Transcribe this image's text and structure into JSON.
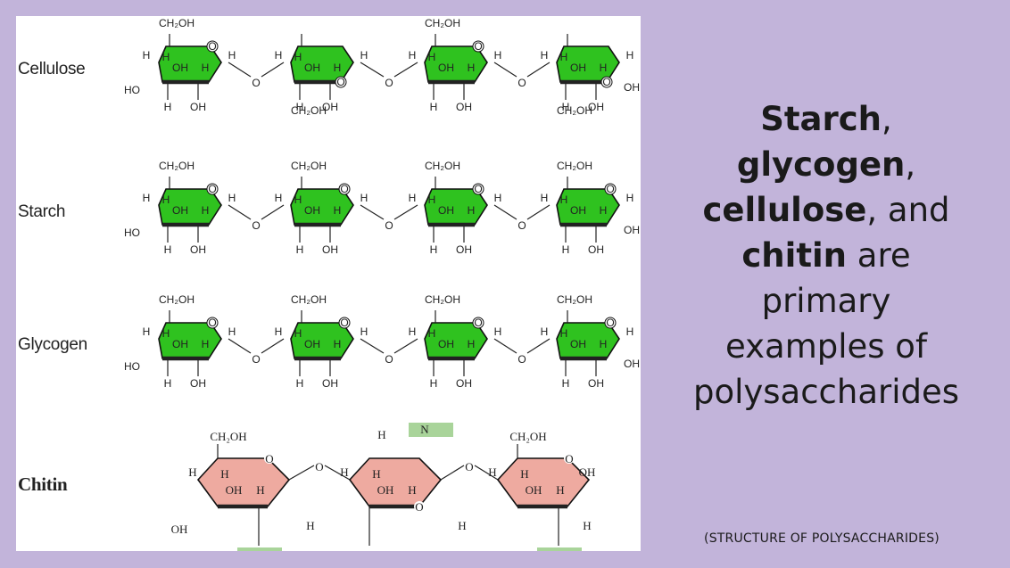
{
  "figure": {
    "rows": [
      {
        "label": "Cellulose"
      },
      {
        "label": "Starch"
      },
      {
        "label": "Glycogen"
      },
      {
        "label": "Chitin"
      }
    ],
    "atoms": {
      "ch2oh": "CH₂OH",
      "oh": "OH",
      "ho": "HO",
      "h": "H",
      "o": "O",
      "n": "N"
    },
    "colors": {
      "glucose_ring": "#2fc21f",
      "chitin_ring": "#eeaaa0",
      "amine_box": "#a9d49a",
      "background": "#c2b4da"
    }
  },
  "headline": {
    "w1": "Starch",
    "p1": ",",
    "w2": "glycogen",
    "p2": ",",
    "w3": "cellulose",
    "p3": ", and",
    "w4": "chitin",
    "p4": " are",
    "l5": "primary",
    "l6": "examples of",
    "l7": "polysaccharides"
  },
  "caption": "(STRUCTURE OF POLYSACCHARIDES)"
}
